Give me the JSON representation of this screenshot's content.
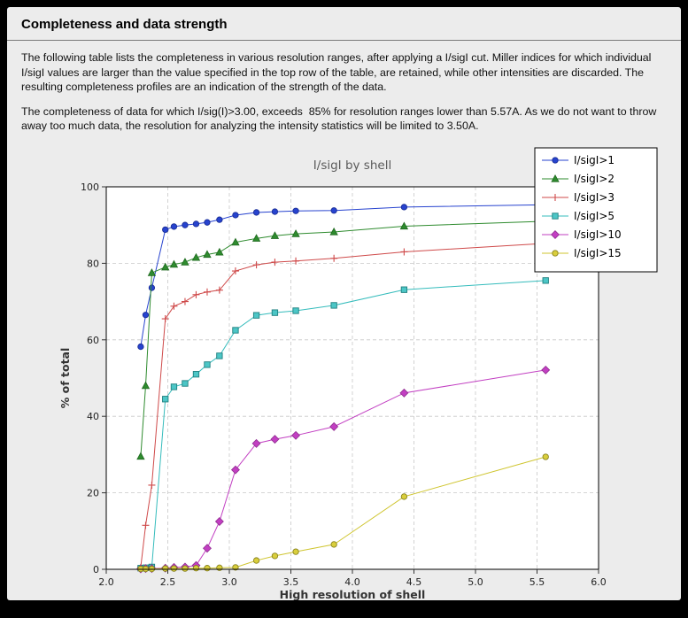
{
  "page": {
    "title": "Completeness and data strength",
    "paragraph1": "The following table lists the completeness in various resolution ranges, after applying a I/sigI cut. Miller indices for which individual I/sigI values are larger than the value specified in the top row of the table, are retained, while other intensities are discarded. The resulting completeness profiles are an indication of the strength of the data.",
    "paragraph2": "The completeness of data for which I/sig(I)>3.00, exceeds  85% for resolution ranges lower than 5.57A. As we do not want to throw away too much data, the resolution for analyzing the intensity statistics will be limited to 3.50A."
  },
  "chart_data": {
    "type": "line",
    "title": "I/sigI by shell",
    "xlabel": "High resolution of shell",
    "ylabel": "% of total",
    "xlim": [
      2.0,
      6.0
    ],
    "ylim": [
      0,
      100
    ],
    "xticks": [
      2.0,
      2.5,
      3.0,
      3.5,
      4.0,
      4.5,
      5.0,
      5.5,
      6.0
    ],
    "yticks": [
      0,
      20,
      40,
      60,
      80,
      100
    ],
    "grid": "dashed",
    "legend_position": "upper right",
    "plot_bg": "#ffffff",
    "figure_bg": "#ececec",
    "grid_color": "#c8c8c8",
    "x": [
      2.28,
      2.32,
      2.37,
      2.48,
      2.55,
      2.64,
      2.73,
      2.82,
      2.92,
      3.05,
      3.22,
      3.37,
      3.54,
      3.85,
      4.42,
      5.57
    ],
    "series": [
      {
        "id": "isigi-gt-1",
        "name": "I/sigI>1",
        "color": "#2743cf",
        "marker": "circle",
        "fill": "#2743cf",
        "edge": "#1b2f96",
        "values": [
          58.2,
          66.5,
          73.6,
          88.8,
          89.6,
          90.0,
          90.3,
          90.7,
          91.4,
          92.6,
          93.3,
          93.5,
          93.7,
          93.8,
          94.7,
          95.3
        ]
      },
      {
        "id": "isigi-gt-2",
        "name": "I/sigI>2",
        "color": "#2e8b2e",
        "marker": "triangle",
        "fill": "#2e8b2e",
        "edge": "#1e681e",
        "values": [
          29.5,
          48.0,
          77.5,
          79.0,
          79.7,
          80.3,
          81.5,
          82.3,
          82.9,
          85.5,
          86.5,
          87.2,
          87.7,
          88.2,
          89.7,
          91.0
        ]
      },
      {
        "id": "isigi-gt-3",
        "name": "I/sigI>3",
        "color": "#cf4a4a",
        "marker": "plus",
        "fill": "none",
        "edge": "#cf4a4a",
        "values": [
          0.5,
          11.5,
          22.0,
          65.5,
          68.8,
          70.0,
          71.8,
          72.5,
          73.0,
          78.0,
          79.6,
          80.3,
          80.6,
          81.3,
          83.0,
          85.2
        ]
      },
      {
        "id": "isigi-gt-5",
        "name": "I/sigI>5",
        "color": "#35bcbc",
        "marker": "square",
        "fill": "#4cc6c6",
        "edge": "#1f7f7f",
        "values": [
          0.3,
          0.4,
          0.6,
          44.5,
          47.7,
          48.6,
          51.0,
          53.5,
          55.8,
          62.5,
          66.4,
          67.1,
          67.6,
          69.0,
          73.1,
          75.5
        ]
      },
      {
        "id": "isigi-gt-10",
        "name": "I/sigI>10",
        "color": "#c23fc2",
        "marker": "diamond",
        "fill": "#c23fc2",
        "edge": "#8f2d8f",
        "values": [
          0.1,
          0.2,
          0.2,
          0.3,
          0.5,
          0.6,
          1.0,
          5.5,
          12.5,
          26.0,
          32.9,
          34.0,
          35.0,
          37.3,
          46.1,
          52.1
        ]
      },
      {
        "id": "isigi-gt-15",
        "name": "I/sigI>15",
        "color": "#cfc52f",
        "marker": "circle",
        "fill": "#d9ce3c",
        "edge": "#8a8420",
        "values": [
          0.1,
          0.1,
          0.1,
          0.2,
          0.2,
          0.2,
          0.3,
          0.3,
          0.4,
          0.5,
          2.3,
          3.5,
          4.6,
          6.5,
          19.0,
          29.4
        ]
      }
    ]
  }
}
